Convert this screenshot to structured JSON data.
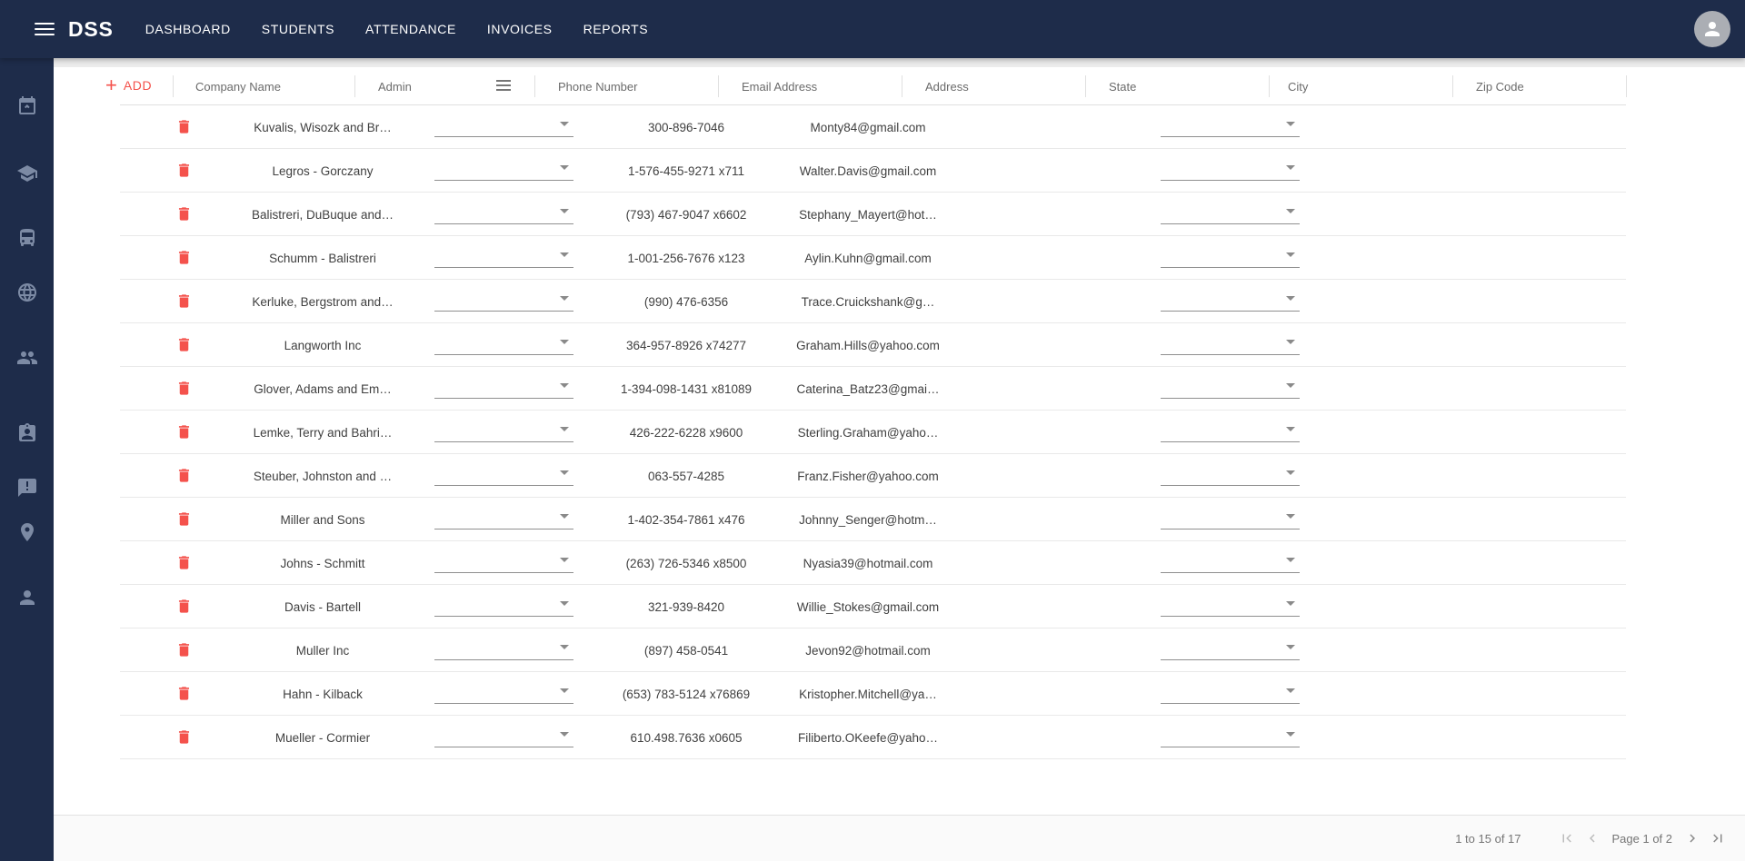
{
  "appbar": {
    "brand": "DSS",
    "nav_items": [
      "DASHBOARD",
      "STUDENTS",
      "ATTENDANCE",
      "INVOICES",
      "REPORTS"
    ]
  },
  "sidebar": {
    "icons": [
      "event-busy-icon",
      "school-icon",
      "bus-icon",
      "globe-icon",
      "people-icon",
      "badge-icon",
      "feedback-icon",
      "place-icon",
      "person-icon"
    ]
  },
  "toolbar": {
    "add_plus": "+",
    "add_label": "ADD"
  },
  "grid": {
    "columns": [
      "Company Name",
      "Admin",
      "Phone Number",
      "Email Address",
      "Address",
      "State",
      "City",
      "Zip Code"
    ],
    "rows": [
      {
        "company": "Kuvalis, Wisozk and Br…",
        "phone": "300-896-7046",
        "email": "Monty84@gmail.com"
      },
      {
        "company": "Legros - Gorczany",
        "phone": "1-576-455-9271 x711",
        "email": "Walter.Davis@gmail.com"
      },
      {
        "company": "Balistreri, DuBuque and…",
        "phone": "(793) 467-9047 x6602",
        "email": "Stephany_Mayert@hot…"
      },
      {
        "company": "Schumm - Balistreri",
        "phone": "1-001-256-7676 x123",
        "email": "Aylin.Kuhn@gmail.com"
      },
      {
        "company": "Kerluke, Bergstrom and…",
        "phone": "(990) 476-6356",
        "email": "Trace.Cruickshank@g…"
      },
      {
        "company": "Langworth Inc",
        "phone": "364-957-8926 x74277",
        "email": "Graham.Hills@yahoo.com"
      },
      {
        "company": "Glover, Adams and Em…",
        "phone": "1-394-098-1431 x81089",
        "email": "Caterina_Batz23@gmai…"
      },
      {
        "company": "Lemke, Terry and Bahri…",
        "phone": "426-222-6228 x9600",
        "email": "Sterling.Graham@yaho…"
      },
      {
        "company": "Steuber, Johnston and …",
        "phone": "063-557-4285",
        "email": "Franz.Fisher@yahoo.com"
      },
      {
        "company": "Miller and Sons",
        "phone": "1-402-354-7861 x476",
        "email": "Johnny_Senger@hotm…"
      },
      {
        "company": "Johns - Schmitt",
        "phone": "(263) 726-5346 x8500",
        "email": "Nyasia39@hotmail.com"
      },
      {
        "company": "Davis - Bartell",
        "phone": "321-939-8420",
        "email": "Willie_Stokes@gmail.com"
      },
      {
        "company": "Muller Inc",
        "phone": "(897) 458-0541",
        "email": "Jevon92@hotmail.com"
      },
      {
        "company": "Hahn - Kilback",
        "phone": "(653) 783-5124 x76869",
        "email": "Kristopher.Mitchell@ya…"
      },
      {
        "company": "Mueller - Cormier",
        "phone": "610.498.7636 x0605",
        "email": "Filiberto.OKeefe@yaho…"
      }
    ]
  },
  "pagination": {
    "range_label": "1 to 15 of 17",
    "page_label": "Page 1 of 2"
  },
  "colors": {
    "appbar_bg": "#1e2c4a",
    "accent_red": "#f4524c",
    "sidebar_icon": "#7c8aa4"
  }
}
